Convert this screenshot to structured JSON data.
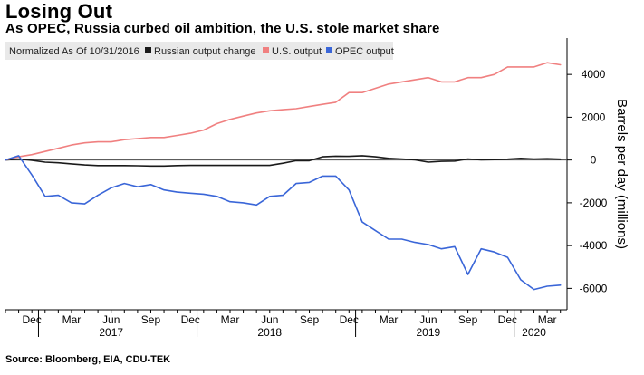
{
  "header": {
    "title": "Losing Out",
    "subtitle": "As OPEC, Russia curbed oil ambition, the U.S. stole market share"
  },
  "footer": {
    "source": "Source: Bloomberg, EIA, CDU-TEK"
  },
  "colors": {
    "russia": "#1a1a1a",
    "us": "#f08080",
    "opec": "#3a66d8",
    "zero_line": "#444444",
    "legend_bg": "#e9e9e9"
  },
  "chart_data": {
    "type": "line",
    "legend": {
      "placement": "top-left",
      "note": "Normalized As Of 10/31/2016",
      "entries": [
        "Russian output change",
        "U.S. output",
        "OPEC output"
      ]
    },
    "ylabel": "Barrels per day (millions)",
    "ylim": [
      -7000,
      5700
    ],
    "yticks": [
      4000,
      2000,
      0,
      -2000,
      -4000,
      -6000
    ],
    "ytick_labels": [
      "4000",
      "2000",
      "0",
      "-2000",
      "-4000",
      "-6000"
    ],
    "xlim": [
      0,
      42.5
    ],
    "x_month_ticks": [
      {
        "label": "Dec",
        "x": 2
      },
      {
        "label": "Mar",
        "x": 5
      },
      {
        "label": "Jun",
        "x": 8
      },
      {
        "label": "Sep",
        "x": 11
      },
      {
        "label": "Dec",
        "x": 14
      },
      {
        "label": "Mar",
        "x": 17
      },
      {
        "label": "Jun",
        "x": 20
      },
      {
        "label": "Sep",
        "x": 23
      },
      {
        "label": "Dec",
        "x": 26
      },
      {
        "label": "Mar",
        "x": 29
      },
      {
        "label": "Jun",
        "x": 32
      },
      {
        "label": "Sep",
        "x": 35
      },
      {
        "label": "Dec",
        "x": 38
      },
      {
        "label": "Mar",
        "x": 41
      }
    ],
    "x_years": [
      {
        "label": "2017",
        "x": 8,
        "boundary": 2.5
      },
      {
        "label": "2018",
        "x": 20,
        "boundary": 14.5
      },
      {
        "label": "2019",
        "x": 32,
        "boundary": 26.5
      },
      {
        "label": "2020",
        "x": 40,
        "boundary": 38.5
      }
    ],
    "x": [
      0,
      1,
      2,
      3,
      4,
      5,
      6,
      7,
      8,
      9,
      10,
      11,
      12,
      13,
      14,
      15,
      16,
      17,
      18,
      19,
      20,
      21,
      22,
      23,
      24,
      25,
      26,
      27,
      28,
      29,
      30,
      31,
      32,
      33,
      34,
      35,
      36,
      37,
      38,
      39,
      40,
      41,
      42
    ],
    "series": [
      {
        "name": "Russian output change",
        "color_key": "russia",
        "values": [
          0,
          50,
          -10,
          -100,
          -130,
          -180,
          -230,
          -260,
          -260,
          -260,
          -270,
          -280,
          -280,
          -260,
          -250,
          -250,
          -250,
          -250,
          -250,
          -250,
          -250,
          -150,
          -30,
          -30,
          150,
          180,
          170,
          200,
          150,
          80,
          50,
          10,
          -100,
          -60,
          -50,
          50,
          10,
          20,
          40,
          80,
          50,
          60,
          40
        ]
      },
      {
        "name": "U.S. output",
        "color_key": "us",
        "values": [
          0,
          150,
          250,
          400,
          550,
          700,
          800,
          850,
          850,
          950,
          1000,
          1050,
          1050,
          1150,
          1250,
          1400,
          1700,
          1900,
          2050,
          2200,
          2300,
          2350,
          2400,
          2500,
          2600,
          2700,
          3150,
          3150,
          3350,
          3550,
          3650,
          3750,
          3850,
          3650,
          3650,
          3850,
          3850,
          4000,
          4350,
          4350,
          4350,
          4550,
          4450
        ]
      },
      {
        "name": "OPEC output",
        "color_key": "opec",
        "values": [
          0,
          200,
          -700,
          -1700,
          -1650,
          -2000,
          -2050,
          -1650,
          -1300,
          -1100,
          -1250,
          -1150,
          -1400,
          -1500,
          -1550,
          -1600,
          -1700,
          -1950,
          -2000,
          -2100,
          -1700,
          -1650,
          -1100,
          -1050,
          -750,
          -750,
          -1400,
          -2900,
          -3300,
          -3700,
          -3700,
          -3850,
          -3950,
          -4150,
          -4050,
          -5350,
          -4150,
          -4300,
          -4550,
          -5600,
          -6050,
          -5900,
          -5850
        ]
      }
    ]
  }
}
